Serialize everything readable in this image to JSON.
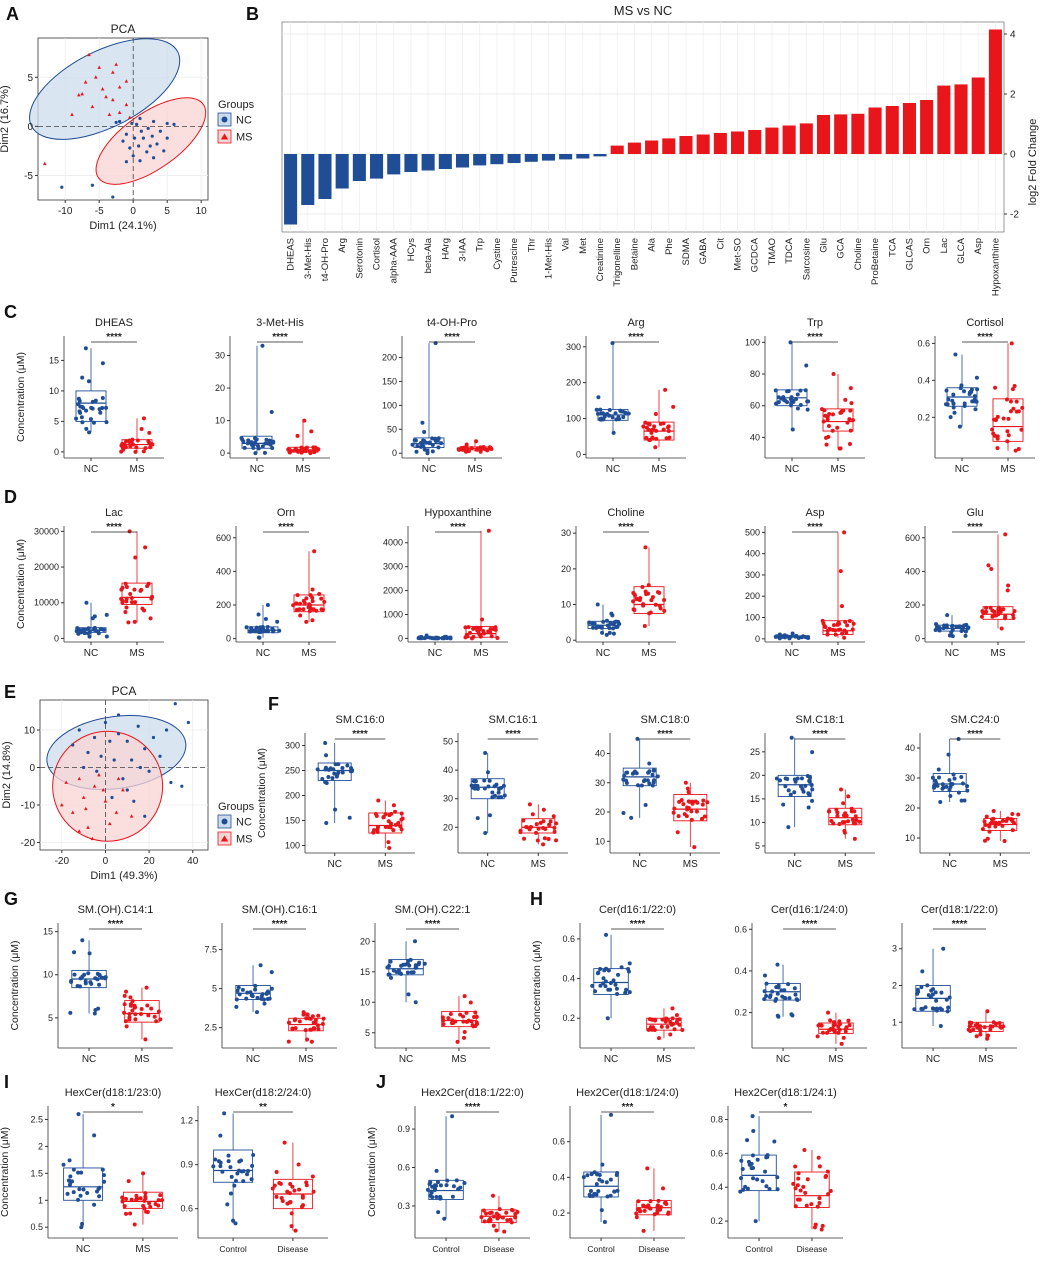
{
  "colors": {
    "nc": "#1f4e96",
    "ms": "#e8151b",
    "nc_fill": "#cddced",
    "ms_fill": "#f9d4d4"
  },
  "chart_data": [
    {
      "type": "scatter",
      "panel": "A",
      "title": "PCA",
      "xlabel": "Dim1 (24.1%)",
      "ylabel": "Dim2 (16.7%)",
      "xlim": [
        -14,
        11
      ],
      "ylim": [
        -7.5,
        9
      ],
      "xticks": [
        -10,
        -5,
        0,
        5,
        10
      ],
      "yticks": [
        -5,
        0,
        5
      ],
      "legend_title": "Groups",
      "legend_labels": [
        "NC",
        "MS"
      ]
    },
    {
      "type": "bar",
      "panel": "B",
      "title": "MS vs NC",
      "ylabel": "log2 Fold Change",
      "ylim": [
        -2.6,
        4.4
      ],
      "yticks": [
        -2,
        0,
        2,
        4
      ],
      "categories": [
        "DHEAS",
        "3-Met-His",
        "t4-OH-Pro",
        "Arg",
        "Serotonin",
        "Cortisol",
        "alpha-AAA",
        "HCys",
        "beta-Ala",
        "HArg",
        "3-IAA",
        "Trp",
        "Cystine",
        "Putrescine",
        "Thr",
        "1-Met-His",
        "Val",
        "Met",
        "Creatinine",
        "Trigonelline",
        "Betaine",
        "Ala",
        "Phe",
        "SDMA",
        "GABA",
        "Cit",
        "Met-SO",
        "GCDCA",
        "TMAO",
        "TDCA",
        "Sarcosine",
        "Glu",
        "GCA",
        "Choline",
        "ProBetaine",
        "TCA",
        "GLCAS",
        "Orn",
        "Lac",
        "GLCA",
        "Asp",
        "Hypoxanthine"
      ],
      "values": [
        -2.35,
        -1.7,
        -1.5,
        -1.15,
        -0.9,
        -0.82,
        -0.68,
        -0.6,
        -0.55,
        -0.5,
        -0.45,
        -0.38,
        -0.34,
        -0.3,
        -0.26,
        -0.22,
        -0.18,
        -0.15,
        -0.08,
        0.28,
        0.38,
        0.45,
        0.52,
        0.6,
        0.65,
        0.7,
        0.75,
        0.8,
        0.88,
        0.95,
        1.02,
        1.3,
        1.32,
        1.34,
        1.55,
        1.6,
        1.7,
        1.8,
        2.28,
        2.32,
        2.55,
        4.15
      ]
    },
    {
      "type": "box",
      "panel": "C",
      "ylabel": "Concentration (μM)",
      "groups": [
        "NC",
        "MS"
      ],
      "plots": [
        {
          "title": "DHEAS",
          "sig": "****",
          "ylim": [
            -1,
            19
          ],
          "yticks": [
            0,
            5,
            10,
            15
          ],
          "boxes": [
            [
              3.2,
              5,
              8,
              10,
              17
            ],
            [
              0,
              0.6,
              1.2,
              2,
              5.5
            ]
          ]
        },
        {
          "title": "3-Met-His",
          "sig": "****",
          "ylim": [
            -1.5,
            36
          ],
          "yticks": [
            0,
            10,
            20,
            30
          ],
          "boxes": [
            [
              0,
              1.5,
              3,
              5.2,
              33
            ],
            [
              0,
              0.3,
              1,
              1.8,
              10
            ]
          ]
        },
        {
          "title": "t4-OH-Pro",
          "sig": "****",
          "ylim": [
            -10,
            245
          ],
          "yticks": [
            0,
            50,
            100,
            150,
            200
          ],
          "boxes": [
            [
              0,
              12,
              20,
              32,
              230
            ],
            [
              3,
              7,
              10,
              13,
              25
            ]
          ]
        },
        {
          "title": "Arg",
          "sig": "****",
          "ylim": [
            -10,
            330
          ],
          "yticks": [
            0,
            100,
            200,
            300
          ],
          "boxes": [
            [
              60,
              95,
              110,
              125,
              310
            ],
            [
              20,
              40,
              65,
              90,
              180
            ]
          ]
        },
        {
          "title": "Trp",
          "sig": "****",
          "ylim": [
            27,
            104
          ],
          "yticks": [
            40,
            60,
            80,
            100
          ],
          "boxes": [
            [
              45,
              60,
              65,
              70,
              100
            ],
            [
              33,
              44,
              50,
              58,
              80
            ]
          ]
        },
        {
          "title": "Cortisol",
          "sig": "****",
          "ylim": [
            -0.02,
            0.64
          ],
          "yticks": [
            0.2,
            0.4,
            0.6
          ],
          "boxes": [
            [
              0.15,
              0.26,
              0.31,
              0.36,
              0.54
            ],
            [
              0.02,
              0.07,
              0.15,
              0.3,
              0.6
            ]
          ]
        }
      ]
    },
    {
      "type": "box",
      "panel": "D",
      "ylabel": "Concentration (μM)",
      "groups": [
        "NC",
        "MS"
      ],
      "plots": [
        {
          "title": "Lac",
          "sig": "****",
          "ylim": [
            -1000,
            31500
          ],
          "yticks": [
            0,
            10000,
            20000,
            30000
          ],
          "boxes": [
            [
              500,
              1700,
              2300,
              3000,
              10000
            ],
            [
              4500,
              9500,
              11500,
              15500,
              30000
            ]
          ]
        },
        {
          "title": "Orn",
          "sig": "****",
          "ylim": [
            -20,
            670
          ],
          "yticks": [
            0,
            200,
            400,
            600
          ],
          "boxes": [
            [
              5,
              35,
              50,
              70,
              200
            ],
            [
              100,
              160,
              200,
              260,
              520
            ]
          ]
        },
        {
          "title": "Hypoxanthine",
          "sig": "****",
          "ylim": [
            -150,
            4700
          ],
          "yticks": [
            0,
            1000,
            2000,
            3000,
            4000
          ],
          "boxes": [
            [
              0,
              5,
              20,
              40,
              120
            ],
            [
              0,
              50,
              200,
              500,
              4500
            ]
          ]
        },
        {
          "title": "Choline",
          "sig": "****",
          "ylim": [
            -0.5,
            32
          ],
          "yticks": [
            0,
            10,
            20,
            30
          ],
          "boxes": [
            [
              1.5,
              3.3,
              4.2,
              5.3,
              10
            ],
            [
              4,
              7.5,
              10,
              15,
              26
            ]
          ]
        },
        {
          "title": "Asp",
          "sig": "****",
          "ylim": [
            -15,
            530
          ],
          "yticks": [
            0,
            100,
            200,
            300,
            400,
            500
          ],
          "boxes": [
            [
              2,
              8,
              11,
              14,
              25
            ],
            [
              5,
              20,
              38,
              85,
              500
            ]
          ]
        },
        {
          "title": "Glu",
          "sig": "****",
          "ylim": [
            -20,
            670
          ],
          "yticks": [
            0,
            200,
            400,
            600
          ],
          "boxes": [
            [
              15,
              45,
              60,
              80,
              140
            ],
            [
              60,
              115,
              145,
              190,
              620
            ]
          ]
        }
      ]
    },
    {
      "type": "scatter",
      "panel": "E",
      "title": "PCA",
      "xlabel": "Dim1 (49.3%)",
      "ylabel": "Dim2 (14.8%)",
      "xlim": [
        -30,
        47
      ],
      "ylim": [
        -22,
        18
      ],
      "xticks": [
        -20,
        0,
        20,
        40
      ],
      "yticks": [
        -20,
        -10,
        0,
        10
      ],
      "legend_title": "Groups",
      "legend_labels": [
        "NC",
        "MS"
      ]
    },
    {
      "type": "box",
      "panel": "F",
      "ylabel": "Concentration (μM)",
      "groups": [
        "NC",
        "MS"
      ],
      "plots": [
        {
          "title": "SM.C16:0",
          "sig": "****",
          "ylim": [
            85,
            325
          ],
          "yticks": [
            100,
            150,
            200,
            250,
            300
          ],
          "boxes": [
            [
              145,
              230,
              250,
              265,
              305
            ],
            [
              95,
              125,
              140,
              165,
              190
            ]
          ]
        },
        {
          "title": "SM.C16:1",
          "sig": "****",
          "ylim": [
            11,
            53
          ],
          "yticks": [
            20,
            30,
            40,
            50
          ],
          "boxes": [
            [
              18,
              30,
              34,
              37,
              46
            ],
            [
              14,
              18,
              20,
              23,
              28
            ]
          ]
        },
        {
          "title": "SM.C18:0",
          "sig": "****",
          "ylim": [
            6,
            47
          ],
          "yticks": [
            10,
            20,
            30,
            40
          ],
          "boxes": [
            [
              18,
              29,
              32,
              35,
              45
            ],
            [
              8,
              17,
              21,
              26,
              30
            ]
          ]
        },
        {
          "title": "SM.C18:1",
          "sig": "****",
          "ylim": [
            3.5,
            29
          ],
          "yticks": [
            5,
            10,
            15,
            20,
            25
          ],
          "boxes": [
            [
              9,
              15.5,
              18,
              20,
              28
            ],
            [
              6.5,
              9.5,
              11,
              13,
              17
            ]
          ]
        },
        {
          "title": "SM.C24:0",
          "sig": "****",
          "ylim": [
            5,
            45
          ],
          "yticks": [
            10,
            20,
            30,
            40
          ],
          "boxes": [
            [
              22,
              25.5,
              28,
              31.5,
              43
            ],
            [
              9,
              12.5,
              14.5,
              16.5,
              19
            ]
          ]
        }
      ]
    },
    {
      "type": "box",
      "panel": "G",
      "ylabel": "Concentration (μM)",
      "groups": [
        "NC",
        "MS"
      ],
      "plots": [
        {
          "title": "SM.(OH).C14:1",
          "sig": "****",
          "ylim": [
            1.5,
            16
          ],
          "yticks": [
            5,
            10,
            15
          ],
          "boxes": [
            [
              5.5,
              8.5,
              9.5,
              10.5,
              14
            ],
            [
              2.5,
              4.5,
              5.5,
              7,
              8.5
            ]
          ]
        },
        {
          "title": "SM.(OH).C16:1",
          "sig": "****",
          "ylim": [
            1.2,
            9.2
          ],
          "yticks": [
            2.5,
            5.0,
            7.5
          ],
          "boxes": [
            [
              3.5,
              4.3,
              4.7,
              5.2,
              6.5
            ],
            [
              1.6,
              2.3,
              2.7,
              3.1,
              3.5
            ]
          ]
        },
        {
          "title": "SM.(OH).C22:1",
          "sig": "****",
          "ylim": [
            2.5,
            23
          ],
          "yticks": [
            5,
            10,
            15,
            20
          ],
          "boxes": [
            [
              10,
              14.5,
              15.5,
              17,
              20
            ],
            [
              3.5,
              6,
              7,
              8.5,
              11
            ]
          ]
        }
      ]
    },
    {
      "type": "box",
      "panel": "H",
      "ylabel": "Concentration (μM)",
      "groups": [
        "NC",
        "MS"
      ],
      "plots": [
        {
          "title": "Cer(d16:1/22:0)",
          "sig": "****",
          "ylim": [
            0.05,
            0.68
          ],
          "yticks": [
            0.2,
            0.4,
            0.6
          ],
          "boxes": [
            [
              0.2,
              0.32,
              0.38,
              0.45,
              0.62
            ],
            [
              0.1,
              0.14,
              0.17,
              0.2,
              0.25
            ]
          ]
        },
        {
          "title": "Cer(d16:1/24:0)",
          "sig": "****",
          "ylim": [
            0.03,
            0.63
          ],
          "yticks": [
            0.2,
            0.4,
            0.6
          ],
          "boxes": [
            [
              0.18,
              0.26,
              0.3,
              0.34,
              0.43
            ],
            [
              0.05,
              0.1,
              0.12,
              0.15,
              0.2
            ]
          ]
        },
        {
          "title": "Cer(d18:1/22:0)",
          "sig": "****",
          "ylim": [
            0.3,
            3.7
          ],
          "yticks": [
            1,
            2,
            3
          ],
          "boxes": [
            [
              0.9,
              1.3,
              1.65,
              2,
              3
            ],
            [
              0.55,
              0.75,
              0.88,
              1.0,
              1.3
            ]
          ]
        }
      ]
    },
    {
      "type": "box",
      "panel": "I",
      "ylabel": "Concentration (μM)",
      "plots": [
        {
          "title": "HexCer(d18:1/23:0)",
          "sig": "*",
          "groups": [
            "NC",
            "MS"
          ],
          "ylim": [
            0.3,
            2.75
          ],
          "yticks": [
            0.5,
            1.0,
            1.5,
            2.0,
            2.5
          ],
          "boxes": [
            [
              0.5,
              1.0,
              1.25,
              1.6,
              2.6
            ],
            [
              0.55,
              0.85,
              0.98,
              1.15,
              1.5
            ]
          ]
        },
        {
          "title": "HexCer(d18:2/24:0)",
          "sig": "**",
          "groups": [
            "Control",
            "Disease"
          ],
          "ylim": [
            0.4,
            1.3
          ],
          "yticks": [
            0.6,
            0.9,
            1.2
          ],
          "boxes": [
            [
              0.5,
              0.78,
              0.86,
              1.0,
              1.25
            ],
            [
              0.45,
              0.6,
              0.7,
              0.8,
              1.05
            ]
          ]
        }
      ]
    },
    {
      "type": "box",
      "panel": "J",
      "ylabel": "Concentration (μM)",
      "plots": [
        {
          "title": "Hex2Cer(d18:1/22:0)",
          "sig": "****",
          "groups": [
            "Control",
            "Disease"
          ],
          "ylim": [
            0.05,
            1.08
          ],
          "yticks": [
            0.3,
            0.6,
            0.9
          ],
          "boxes": [
            [
              0.2,
              0.35,
              0.42,
              0.5,
              1.0
            ],
            [
              0.1,
              0.17,
              0.22,
              0.27,
              0.38
            ]
          ]
        },
        {
          "title": "Hex2Cer(d18:1/24:0)",
          "sig": "***",
          "groups": [
            "Control",
            "Disease"
          ],
          "ylim": [
            0.06,
            0.8
          ],
          "yticks": [
            0.2,
            0.4,
            0.6
          ],
          "boxes": [
            [
              0.15,
              0.29,
              0.35,
              0.43,
              0.75
            ],
            [
              0.1,
              0.19,
              0.23,
              0.27,
              0.45
            ]
          ]
        },
        {
          "title": "Hex2Cer(d18:1/24:1)",
          "sig": "*",
          "groups": [
            "Control",
            "Disease"
          ],
          "ylim": [
            0.1,
            0.88
          ],
          "yticks": [
            0.2,
            0.4,
            0.6,
            0.8
          ],
          "boxes": [
            [
              0.2,
              0.38,
              0.47,
              0.59,
              0.82
            ],
            [
              0.15,
              0.28,
              0.35,
              0.49,
              0.62
            ]
          ]
        }
      ]
    }
  ]
}
